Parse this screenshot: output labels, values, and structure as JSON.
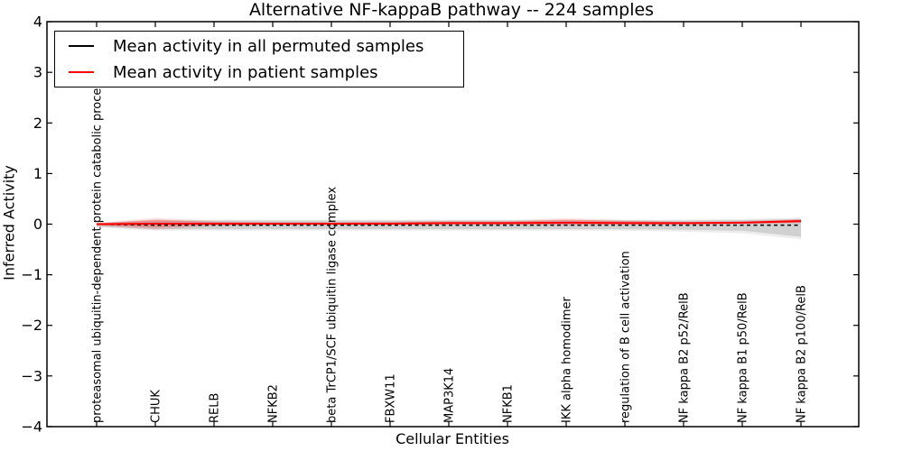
{
  "title": "Alternative NF-kappaB pathway -- 224 samples",
  "axes": {
    "xlabel": "Cellular Entities",
    "ylabel": "Inferred Activity",
    "ylim": [
      -4,
      4
    ],
    "yticks": [
      {
        "label": "4",
        "value": 4
      },
      {
        "label": "3",
        "value": 3
      },
      {
        "label": "2",
        "value": 2
      },
      {
        "label": "1",
        "value": 1
      },
      {
        "label": "0",
        "value": 0
      },
      {
        "label": "−1",
        "value": -1
      },
      {
        "label": "−2",
        "value": -2
      },
      {
        "label": "−3",
        "value": -3
      },
      {
        "label": "−4",
        "value": -4
      }
    ]
  },
  "legend": {
    "items": [
      {
        "label": "Mean activity in all permuted samples",
        "color": "#000000"
      },
      {
        "label": "Mean activity in patient samples",
        "color": "#ff0000"
      }
    ]
  },
  "colors": {
    "background": "#ffffff",
    "axis": "#000000",
    "permuted_line": "#000000",
    "patient_line": "#ff0000",
    "permuted_band": "rgba(0,0,0,0.12)",
    "permuted_outer_band": "rgba(0,0,0,0.07)",
    "patient_band": "rgba(255,0,0,0.22)",
    "patient_outer_band": "rgba(255,0,0,0.10)"
  },
  "chart_data": {
    "type": "line",
    "title": "Alternative NF-kappaB pathway -- 224 samples",
    "xlabel": "Cellular Entities",
    "ylabel": "Inferred Activity",
    "ylim": [
      -4,
      4
    ],
    "grid": false,
    "legend_position": "upper left",
    "x_tick_label_rotation": 90,
    "categories": [
      "proteasomal ubiquitin-dependent protein catabolic process",
      "CHUK",
      "RELB",
      "NFKB2",
      "beta TrCP1/SCF ubiquitin ligase complex",
      "FBXW11",
      "MAP3K14",
      "NFKB1",
      "IKK alpha homodimer",
      "regulation of B cell activation",
      "NF kappa B2 p52/RelB",
      "NF kappa B1 p50/RelB",
      "NF kappa B2 p100/RelB"
    ],
    "series": [
      {
        "name": "Mean activity in all permuted samples",
        "color": "#000000",
        "line_style": "dashed",
        "mean": [
          0.0,
          -0.02,
          -0.02,
          -0.02,
          -0.02,
          -0.02,
          -0.02,
          -0.02,
          -0.02,
          -0.02,
          -0.02,
          -0.02,
          -0.02
        ],
        "band_upper": [
          0.02,
          0.07,
          0.07,
          0.07,
          0.07,
          0.07,
          0.07,
          0.07,
          0.07,
          0.07,
          0.07,
          0.08,
          0.1
        ],
        "band_lower": [
          -0.05,
          -0.1,
          -0.1,
          -0.1,
          -0.1,
          -0.1,
          -0.1,
          -0.1,
          -0.1,
          -0.1,
          -0.11,
          -0.13,
          -0.25
        ],
        "outer_band_upper": [
          0.03,
          0.09,
          0.09,
          0.09,
          0.09,
          0.09,
          0.09,
          0.09,
          0.09,
          0.09,
          0.09,
          0.1,
          0.13
        ],
        "outer_band_lower": [
          -0.06,
          -0.13,
          -0.13,
          -0.13,
          -0.13,
          -0.13,
          -0.13,
          -0.13,
          -0.13,
          -0.13,
          -0.15,
          -0.18,
          -0.3
        ]
      },
      {
        "name": "Mean activity in patient samples",
        "color": "#ff0000",
        "line_style": "solid",
        "mean": [
          0.0,
          0.01,
          0.01,
          0.01,
          0.01,
          0.01,
          0.02,
          0.02,
          0.03,
          0.02,
          0.02,
          0.03,
          0.06
        ],
        "band_upper": [
          0.01,
          0.09,
          0.04,
          0.03,
          0.03,
          0.04,
          0.05,
          0.05,
          0.09,
          0.06,
          0.04,
          0.05,
          0.09
        ],
        "band_lower": [
          -0.02,
          -0.07,
          -0.02,
          -0.01,
          -0.01,
          -0.01,
          0.0,
          0.0,
          -0.01,
          0.0,
          0.0,
          0.01,
          0.03
        ],
        "outer_band_upper": [
          0.02,
          0.13,
          0.06,
          0.04,
          0.04,
          0.05,
          0.07,
          0.07,
          0.12,
          0.08,
          0.05,
          0.06,
          0.1
        ],
        "outer_band_lower": [
          -0.03,
          -0.11,
          -0.04,
          -0.02,
          -0.02,
          -0.02,
          -0.01,
          -0.01,
          -0.03,
          -0.01,
          -0.01,
          0.0,
          0.02
        ]
      }
    ]
  }
}
